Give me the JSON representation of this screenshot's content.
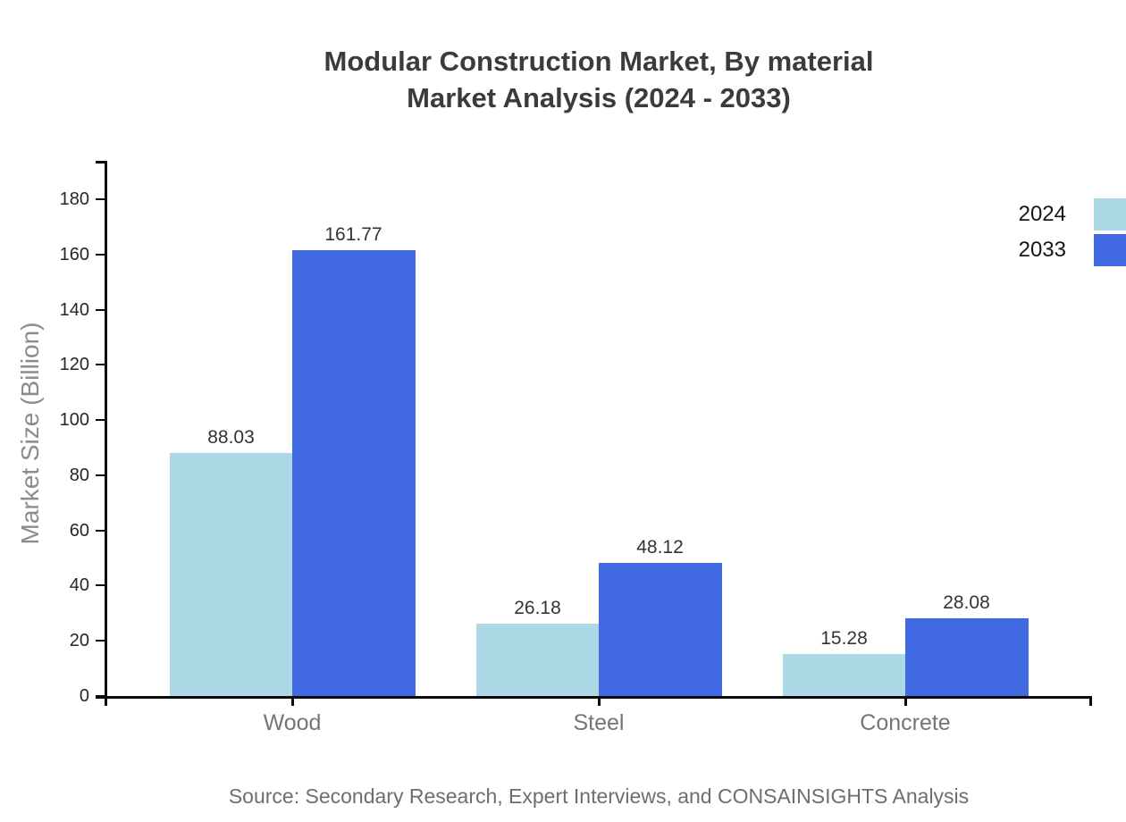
{
  "chart_data": {
    "type": "bar",
    "title_lines": [
      "Modular Construction Market, By material",
      "Market Analysis (2024 - 2033)"
    ],
    "categories": [
      "Wood",
      "Steel",
      "Concrete"
    ],
    "series": [
      {
        "name": "2024",
        "color": "#add8e6",
        "values": [
          88.03,
          26.18,
          15.28
        ]
      },
      {
        "name": "2033",
        "color": "#4169e1",
        "values": [
          161.77,
          48.12,
          28.08
        ]
      }
    ],
    "xlabel": "",
    "ylabel": "Market Size (Billion)",
    "yticks": [
      0,
      20,
      40,
      60,
      80,
      100,
      120,
      140,
      160,
      180
    ],
    "ylim": [
      0,
      194
    ],
    "grid": false,
    "legend_position": "top-right",
    "value_label_decimals": 2,
    "axis_color": "#0a0a0a"
  },
  "footer": {
    "source_text": "Source: Secondary Research, Expert Interviews, and CONSAINSIGHTS Analysis"
  }
}
